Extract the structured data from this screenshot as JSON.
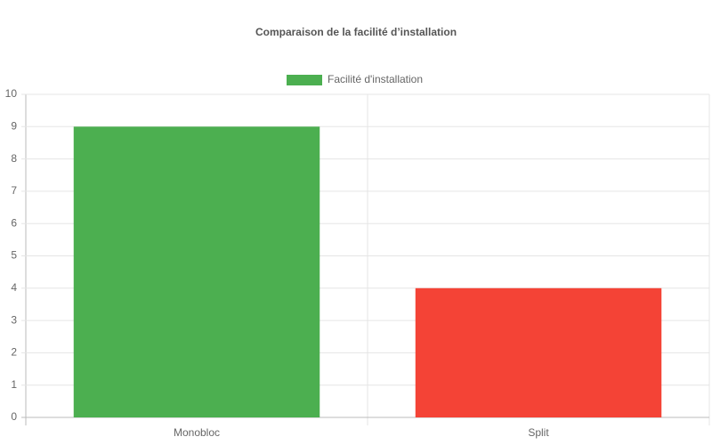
{
  "chart_data": {
    "type": "bar",
    "title": "Comparaison de la facilité d’installation",
    "categories": [
      "Monobloc",
      "Split"
    ],
    "series": [
      {
        "name": "Facilité d'installation",
        "color": "#4caf50",
        "bar_colors": [
          "#4caf50",
          "#f44336"
        ],
        "values": [
          9,
          4
        ]
      }
    ],
    "ylim": [
      0,
      10
    ],
    "yticks": [
      0,
      1,
      2,
      3,
      4,
      5,
      6,
      7,
      8,
      9,
      10
    ],
    "grid": true,
    "legend": "top"
  }
}
